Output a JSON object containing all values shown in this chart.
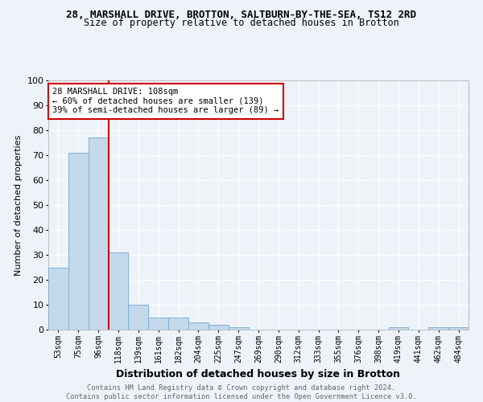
{
  "title1": "28, MARSHALL DRIVE, BROTTON, SALTBURN-BY-THE-SEA, TS12 2RD",
  "title2": "Size of property relative to detached houses in Brotton",
  "xlabel": "Distribution of detached houses by size in Brotton",
  "ylabel": "Number of detached properties",
  "categories": [
    "53sqm",
    "75sqm",
    "96sqm",
    "118sqm",
    "139sqm",
    "161sqm",
    "182sqm",
    "204sqm",
    "225sqm",
    "247sqm",
    "269sqm",
    "290sqm",
    "312sqm",
    "333sqm",
    "355sqm",
    "376sqm",
    "398sqm",
    "419sqm",
    "441sqm",
    "462sqm",
    "484sqm"
  ],
  "values": [
    25,
    71,
    77,
    31,
    10,
    5,
    5,
    3,
    2,
    1,
    0,
    0,
    0,
    0,
    0,
    0,
    0,
    1,
    0,
    1,
    1
  ],
  "bar_color": "#c5d9ec",
  "bar_edge_color": "#7aafd4",
  "vline_x": 2.5,
  "vline_color": "#cc0000",
  "ylim": [
    0,
    100
  ],
  "yticks": [
    0,
    10,
    20,
    30,
    40,
    50,
    60,
    70,
    80,
    90,
    100
  ],
  "annotation_box_line1": "28 MARSHALL DRIVE: 108sqm",
  "annotation_box_line2": "← 60% of detached houses are smaller (139)",
  "annotation_box_line3": "39% of semi-detached houses are larger (89) →",
  "annotation_box_color": "#cc0000",
  "annotation_box_fill": "#ffffff",
  "footer_text": "Contains HM Land Registry data © Crown copyright and database right 2024.\nContains public sector information licensed under the Open Government Licence v3.0.",
  "background_color": "#eef3fa",
  "grid_color": "#ffffff",
  "title1_fontsize": 9,
  "title2_fontsize": 8.5,
  "ylabel_fontsize": 8,
  "xlabel_fontsize": 9
}
